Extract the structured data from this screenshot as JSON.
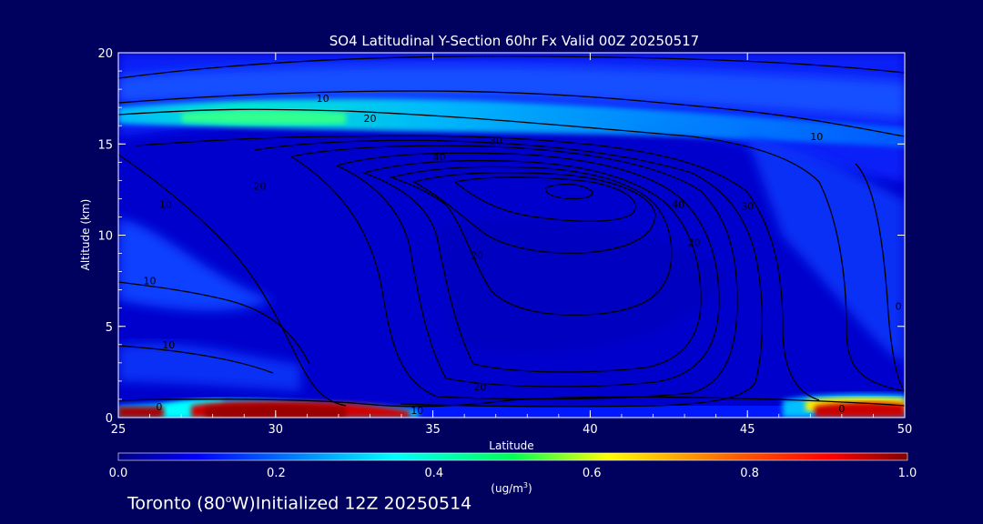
{
  "chart_data": {
    "type": "heatmap",
    "title": "SO4 Latitudinal Y-Section 60hr  Fx Valid 00Z 20250517",
    "xlabel": "Latitude",
    "ylabel": "Altitude (km)",
    "xlim": [
      25,
      50
    ],
    "ylim": [
      0,
      20
    ],
    "xticks": [
      "25",
      "30",
      "35",
      "40",
      "45",
      "50"
    ],
    "yticks": [
      "0",
      "5",
      "10",
      "15",
      "20"
    ],
    "colorbar": {
      "label_prefix": "(ug/m",
      "label_sup": "3",
      "label_suffix": ")",
      "range": [
        0.0,
        1.0
      ],
      "ticks": [
        "0.0",
        "0.2",
        "0.4",
        "0.6",
        "0.8",
        "1.0"
      ]
    },
    "contour_labels": [
      {
        "text": "10",
        "lat": 31.5,
        "alt": 17.3
      },
      {
        "text": "20",
        "lat": 33.0,
        "alt": 16.2
      },
      {
        "text": "30",
        "lat": 37.0,
        "alt": 15.0
      },
      {
        "text": "40",
        "lat": 35.2,
        "alt": 14.1
      },
      {
        "text": "10",
        "lat": 47.2,
        "alt": 15.2
      },
      {
        "text": "40",
        "lat": 42.8,
        "alt": 11.5
      },
      {
        "text": "30",
        "lat": 45.0,
        "alt": 11.4
      },
      {
        "text": "10",
        "lat": 26.5,
        "alt": 11.5
      },
      {
        "text": "20",
        "lat": 29.5,
        "alt": 12.5
      },
      {
        "text": "20",
        "lat": 36.4,
        "alt": 8.7
      },
      {
        "text": "20",
        "lat": 43.3,
        "alt": 9.4
      },
      {
        "text": "10",
        "lat": 26.0,
        "alt": 7.3
      },
      {
        "text": "10",
        "lat": 26.6,
        "alt": 3.8
      },
      {
        "text": "20",
        "lat": 36.5,
        "alt": 1.5
      },
      {
        "text": "10",
        "lat": 34.5,
        "alt": 0.2
      },
      {
        "text": "0",
        "lat": 26.3,
        "alt": 0.4
      },
      {
        "text": "0",
        "lat": 48.0,
        "alt": 0.3
      },
      {
        "text": "0",
        "lat": 49.8,
        "alt": 5.9
      }
    ]
  },
  "footer": {
    "station": "Toronto (80",
    "degree": "o",
    "station_end": "W)Initialized 12Z 20250514"
  },
  "colors": {
    "background": "#00005f",
    "field_base": "#0000cd",
    "contour": "#000000"
  }
}
